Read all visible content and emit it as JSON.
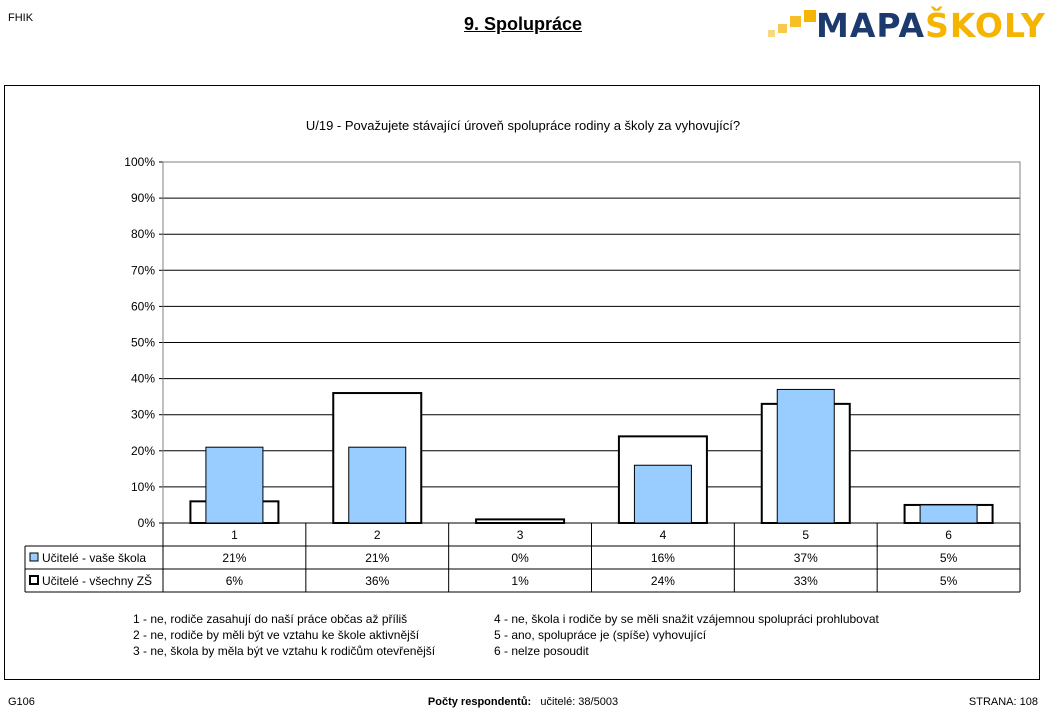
{
  "header": {
    "org": "FHIK",
    "title": "9. Spolupráce",
    "logo_part1": "MAPA",
    "logo_part2": "ŠKOLY"
  },
  "chart_data": {
    "type": "bar",
    "title": "U/19 - Považujete stávající úroveň spolupráce rodiny a školy za vyhovující?",
    "categories": [
      "1",
      "2",
      "3",
      "4",
      "5",
      "6"
    ],
    "series": [
      {
        "name": "Učitelé - vaše škola",
        "values": [
          21,
          21,
          0,
          16,
          37,
          5
        ],
        "labels": [
          "21%",
          "21%",
          "0%",
          "16%",
          "37%",
          "5%"
        ],
        "color": "#99ccff"
      },
      {
        "name": "Učitelé - všechny ZŠ",
        "values": [
          6,
          36,
          1,
          24,
          33,
          5
        ],
        "labels": [
          "6%",
          "36%",
          "1%",
          "24%",
          "33%",
          "5%"
        ],
        "color": "#ffffff"
      }
    ],
    "y_ticks": [
      "0%",
      "10%",
      "20%",
      "30%",
      "40%",
      "50%",
      "60%",
      "70%",
      "80%",
      "90%",
      "100%"
    ],
    "ylim": [
      0,
      100
    ],
    "grid": true
  },
  "notes": [
    "1   -   ne, rodiče zasahují do naší práce občas až příliš",
    "2   -   ne, rodiče by měli být ve vztahu ke škole aktivnější",
    "3   -   ne, škola by měla být ve vztahu k rodičům otevřenější",
    "4   -   ne, škola i rodiče by se měli snažit vzájemnou spolupráci prohlubovat",
    "5   -   ano, spolupráce je (spíše) vyhovující",
    "6   -   nelze posoudit"
  ],
  "footer": {
    "left": "G106",
    "respondents_label": "Počty respondentů:",
    "respondents_value": "učitelé: 38/5003",
    "right": "STRANA: 108"
  }
}
